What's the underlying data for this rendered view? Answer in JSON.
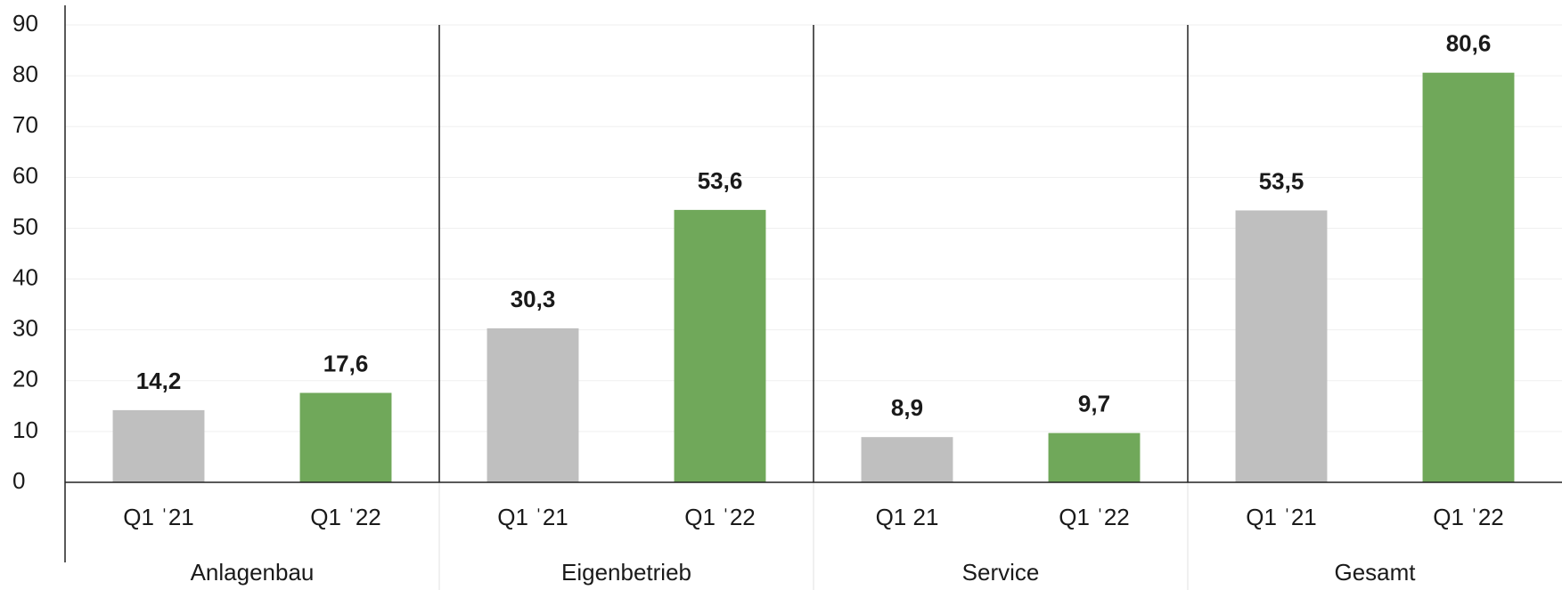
{
  "chart_data": {
    "type": "bar",
    "categories": [
      "Q1 ˈ21",
      "Q1 ˈ22",
      "Q1 ˈ21",
      "Q1 ˈ22",
      "Q1 21",
      "Q1 ˈ22",
      "Q1 ˈ21",
      "Q1 ˈ22"
    ],
    "groups": [
      "Anlagenbau",
      "Eigenbetrieb",
      "Service",
      "Gesamt"
    ],
    "values": [
      14.2,
      17.6,
      30.3,
      53.6,
      8.9,
      9.7,
      53.5,
      80.6
    ],
    "value_labels": [
      "14,2",
      "17,6",
      "30,3",
      "53,6",
      "8,9",
      "9,7",
      "53,5",
      "80,6"
    ],
    "colors": [
      "#bfbfbf",
      "#70a85a",
      "#bfbfbf",
      "#70a85a",
      "#bfbfbf",
      "#70a85a",
      "#bfbfbf",
      "#70a85a"
    ],
    "ylim": [
      0,
      90
    ],
    "yticks": [
      0,
      10,
      20,
      30,
      40,
      50,
      60,
      70,
      80,
      90
    ],
    "grid": true
  }
}
